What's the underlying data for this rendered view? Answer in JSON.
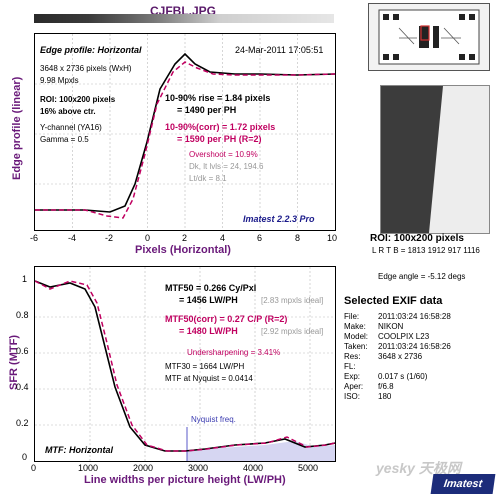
{
  "window": {
    "title": "CJFBL.JPG"
  },
  "edge_panel": {
    "heading": "Edge profile: Horizontal",
    "date": "24-Mar-2011 17:05:51",
    "dims": "3648 x 2736 pixels (WxH)",
    "mpxls": "9.98 Mpxls",
    "roi_line": "ROI: 100x200 pixels",
    "above_ctr": "16% above ctr.",
    "channel": "Y-channel (YA16)",
    "gamma": "Gamma = 0.5",
    "rise": "10-90% rise = 1.84 pixels",
    "per_ph": "= 1490 per PH",
    "rise_corr": "10-90%(corr) = 1.72 pixels",
    "per_ph_corr": "= 1590 per PH   (R=2)",
    "overshoot": "Overshoot = 10.9%",
    "dk": "Dk, lt lvls = 24, 194.6",
    "ltdk": "Lt/dk = 8.1",
    "version": "Imatest 2.2.3 Pro",
    "ylabel": "Edge profile (linear)",
    "xlabel": "Pixels (Horizontal)",
    "xticks": [
      "-6",
      "-4",
      "-2",
      "0",
      "2",
      "4",
      "6",
      "8",
      "10"
    ]
  },
  "mtf_panel": {
    "mtf50": "MTF50 = 0.266 Cy/Pxl",
    "lwph": "= 1456 LW/PH",
    "ideal1": "[2.83 mpxls ideal]",
    "mtf50corr": "MTF50(corr) = 0.27 C/P   (R=2)",
    "lwph_corr": "= 1480 LW/PH",
    "ideal2": "[2.92 mpxls ideal]",
    "undersharp": "Undersharpening = 3.41%",
    "mtf30": "MTF30 = 1664 LW/PH",
    "nyq": "MTF at Nyquist = 0.0414",
    "nyq_label": "Nyquist freq.",
    "heading": "MTF: Horizontal",
    "ylabel": "SFR (MTF)",
    "xlabel": "Line widths per picture height (LW/PH)",
    "xticks": [
      "0",
      "1000",
      "2000",
      "3000",
      "4000",
      "5000"
    ],
    "yticks": [
      "1",
      "0.8",
      "0.6",
      "0.4",
      "0.2",
      "0"
    ]
  },
  "right": {
    "roi": "ROI: 100x200 pixels",
    "lrtb": "L R T B = 1813 1912  917 1116",
    "edge_angle": "Edge angle = -5.12 degs",
    "exif_title": "Selected EXIF data",
    "exif": [
      {
        "k": "File:",
        "v": "2011:03:24 16:58:28"
      },
      {
        "k": "Make:",
        "v": "NIKON"
      },
      {
        "k": "Model:",
        "v": "COOLPIX L23"
      },
      {
        "k": "Taken:",
        "v": "2011:03:24 16:58:26"
      },
      {
        "k": "Res:",
        "v": "3648 x 2736"
      },
      {
        "k": "FL:",
        "v": ""
      },
      {
        "k": "Exp:",
        "v": "0.017 s  (1/60)"
      },
      {
        "k": "Aper:",
        "v": "f/6.8"
      },
      {
        "k": "ISO:",
        "v": "180"
      }
    ]
  },
  "logo": {
    "text": "Imatest",
    "watermark": "yesky 天极网"
  }
}
